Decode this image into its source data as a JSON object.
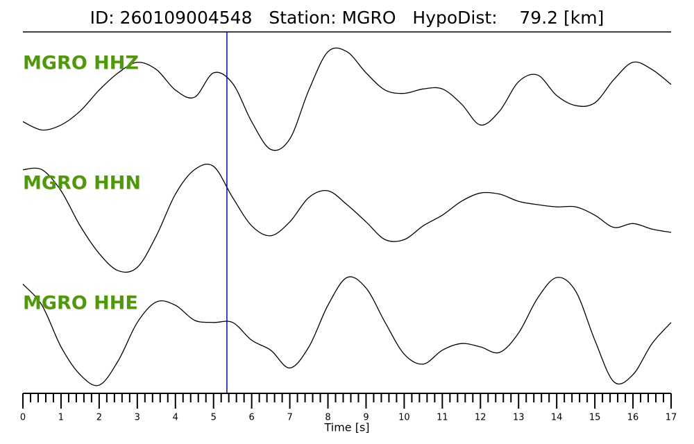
{
  "chart_data": {
    "type": "line",
    "title": "ID: 260109004548   Station: MGRO   HypoDist:    79.2 [km]",
    "xlabel": "Time [s]",
    "x": [
      0,
      0.5,
      1,
      1.5,
      2,
      2.5,
      3,
      3.5,
      4,
      4.5,
      5,
      5.5,
      6,
      6.5,
      7,
      7.5,
      8,
      8.5,
      9,
      9.5,
      10,
      10.5,
      11,
      11.5,
      12,
      12.5,
      13,
      13.5,
      14,
      14.5,
      15,
      15.5,
      16,
      16.5,
      17
    ],
    "series": [
      {
        "name": "MGRO HHZ",
        "color": "#000000",
        "values": [
          -0.48,
          -0.63,
          -0.54,
          -0.29,
          0.09,
          0.4,
          0.59,
          0.46,
          0.09,
          -0.04,
          0.4,
          0.21,
          -0.48,
          -0.98,
          -0.79,
          0.09,
          0.78,
          0.78,
          0.4,
          0.09,
          0.03,
          0.11,
          0.11,
          -0.16,
          -0.54,
          -0.29,
          0.24,
          0.36,
          -0.01,
          -0.19,
          -0.14,
          0.28,
          0.59,
          0.46,
          0.19
        ]
      },
      {
        "name": "MGRO HHN",
        "color": "#000000",
        "values": [
          0.88,
          0.88,
          0.5,
          -0.13,
          -0.63,
          -0.94,
          -0.88,
          -0.31,
          0.44,
          0.88,
          0.94,
          0.38,
          -0.13,
          -0.31,
          -0.06,
          0.38,
          0.5,
          0.25,
          -0.06,
          -0.38,
          -0.38,
          -0.13,
          0.06,
          0.31,
          0.46,
          0.44,
          0.31,
          0.25,
          0.21,
          0.21,
          0.06,
          -0.16,
          -0.09,
          -0.19,
          -0.25
        ]
      },
      {
        "name": "MGRO HHE",
        "color": "#000000",
        "values": [
          0.88,
          0.5,
          -0.25,
          -0.75,
          -0.94,
          -0.5,
          0.19,
          0.56,
          0.5,
          0.23,
          0.19,
          0.19,
          -0.13,
          -0.31,
          -0.63,
          -0.25,
          0.5,
          1.0,
          0.81,
          0.19,
          -0.38,
          -0.56,
          -0.31,
          -0.19,
          -0.25,
          -0.35,
          0.0,
          0.63,
          1.0,
          0.75,
          -0.13,
          -0.88,
          -0.75,
          -0.19,
          0.19
        ]
      }
    ],
    "label_color": "#4e9a06",
    "marker_x": 5.35,
    "marker_color": "#0000cc",
    "xlim": [
      0,
      17
    ],
    "ylim": [
      -1,
      1
    ],
    "xticks": [
      0,
      1,
      2,
      3,
      4,
      5,
      6,
      7,
      8,
      9,
      10,
      11,
      12,
      13,
      14,
      15,
      16,
      17
    ],
    "xminorticks": [
      0.2,
      0.4,
      0.6,
      0.8,
      1.2,
      1.4,
      1.6,
      1.8,
      2.2,
      2.4,
      2.6,
      2.8,
      3.2,
      3.4,
      3.6,
      3.8,
      4.2,
      4.4,
      4.6,
      4.8,
      5.2,
      5.4,
      5.6,
      5.8,
      6.2,
      6.4,
      6.6,
      6.8,
      7.2,
      7.4,
      7.6,
      7.8,
      8.2,
      8.4,
      8.6,
      8.8,
      9.2,
      9.4,
      9.6,
      9.8,
      10.2,
      10.4,
      10.6,
      10.8,
      11.2,
      11.4,
      11.6,
      11.8,
      12.2,
      12.4,
      12.6,
      12.8,
      13.2,
      13.4,
      13.6,
      13.8,
      14.2,
      14.4,
      14.6,
      14.8,
      15.2,
      15.4,
      15.6,
      15.8,
      16.2,
      16.4,
      16.6,
      16.8
    ]
  }
}
